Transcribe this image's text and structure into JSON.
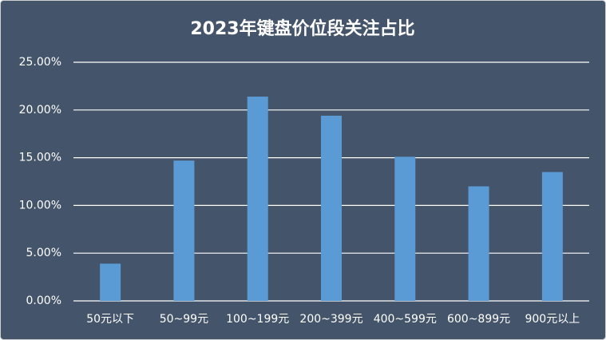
{
  "chart_data": {
    "type": "bar",
    "title": "2023年键盘价位段关注占比",
    "categories": [
      "50元以下",
      "50~99元",
      "100~199元",
      "200~399元",
      "400~599元",
      "600~899元",
      "900元以上"
    ],
    "values": [
      3.9,
      14.7,
      21.4,
      19.4,
      15.1,
      12.0,
      13.5
    ],
    "color": "#5b9bd5",
    "ylim": [
      0,
      25
    ],
    "yticks": [
      {
        "value": 0,
        "label": "0.00%"
      },
      {
        "value": 5,
        "label": "5.00%"
      },
      {
        "value": 10,
        "label": "10.00%"
      },
      {
        "value": 15,
        "label": "15.00%"
      },
      {
        "value": 20,
        "label": "20.00%"
      },
      {
        "value": 25,
        "label": "25.00%"
      }
    ],
    "grid": true
  }
}
